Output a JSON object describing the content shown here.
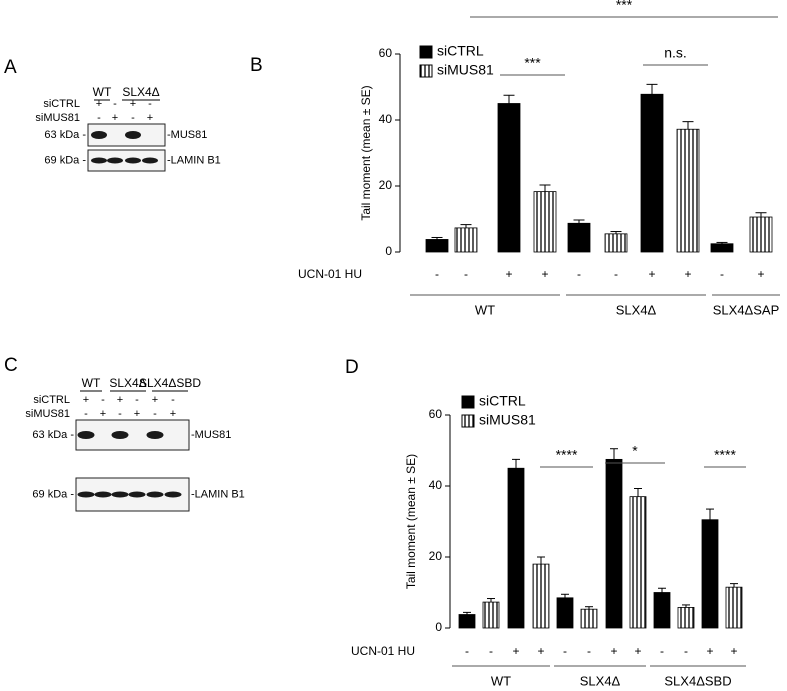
{
  "panel_labels": [
    "A",
    "B",
    "C",
    "D"
  ],
  "blots": [
    {
      "groups": [
        "WT",
        "SLX4Δ"
      ],
      "rows": [
        {
          "name": "siCTRL",
          "signs": [
            "+",
            "-",
            "+",
            "-"
          ]
        },
        {
          "name": "siMUS81",
          "signs": [
            "-",
            "+",
            "-",
            "+"
          ]
        }
      ],
      "bands": [
        {
          "size": "63 kDa -",
          "protein": "-MUS81"
        },
        {
          "size": "69 kDa -",
          "protein": "-LAMIN B1"
        }
      ]
    },
    {
      "groups": [
        "WT",
        "SLX4Δ",
        "SLX4ΔSBD"
      ],
      "rows": [
        {
          "name": "siCTRL",
          "signs": [
            "+",
            "-",
            "+",
            "-",
            "+",
            "-"
          ]
        },
        {
          "name": "siMUS81",
          "signs": [
            "-",
            "+",
            "-",
            "+",
            "-",
            "+"
          ]
        }
      ],
      "bands": [
        {
          "size": "63 kDa -",
          "protein": "-MUS81"
        },
        {
          "size": "69 kDa -",
          "protein": "-LAMIN B1"
        }
      ]
    }
  ],
  "chart_data": [
    {
      "type": "bar",
      "ylabel": "Tail moment (mean ± SE)",
      "row_label": "UCN-01 HU",
      "categories": [
        "-",
        "-",
        "+",
        "+",
        "-",
        "-",
        "+",
        "+",
        "-",
        "+"
      ],
      "groups": [
        "WT",
        "SLX4Δ",
        "SLX4ΔSAP"
      ],
      "ylim": [
        0,
        60
      ],
      "yticks": [
        0,
        20,
        40,
        60
      ],
      "series": [
        {
          "name": "siCTRL",
          "color": "#000000",
          "values": [
            3.8,
            null,
            45,
            null,
            8.7,
            null,
            47.8,
            null,
            2.5,
            null
          ],
          "errors": [
            0.6,
            null,
            2.5,
            null,
            1,
            null,
            3,
            null,
            0.4,
            null
          ]
        },
        {
          "name": "siMUS81",
          "color": "#000000",
          "pattern": "vertical-stripes",
          "values": [
            null,
            7.3,
            null,
            18.3,
            null,
            5.5,
            null,
            37.2,
            null,
            10.6
          ],
          "errors": [
            null,
            1,
            null,
            2,
            null,
            0.7,
            null,
            2.3,
            null,
            1.3
          ]
        }
      ],
      "annotations": [
        "***",
        "n.s.",
        "***"
      ]
    },
    {
      "type": "bar",
      "ylabel": "Tail moment (mean ± SE)",
      "row_label": "UCN-01 HU",
      "categories": [
        "-",
        "-",
        "+",
        "+",
        "-",
        "-",
        "+",
        "+",
        "-",
        "-",
        "+",
        "+"
      ],
      "groups": [
        "WT",
        "SLX4Δ",
        "SLX4ΔSBD"
      ],
      "ylim": [
        0,
        60
      ],
      "yticks": [
        0,
        20,
        40,
        60
      ],
      "series": [
        {
          "name": "siCTRL",
          "color": "#000000",
          "values": [
            3.8,
            null,
            45,
            null,
            8.5,
            null,
            47.5,
            null,
            10,
            null,
            30.5,
            null
          ],
          "errors": [
            0.6,
            null,
            2.5,
            null,
            1,
            null,
            3,
            null,
            1.2,
            null,
            3,
            null
          ]
        },
        {
          "name": "siMUS81",
          "color": "#000000",
          "pattern": "vertical-stripes",
          "values": [
            null,
            7.3,
            null,
            18,
            null,
            5.3,
            null,
            37,
            null,
            5.8,
            null,
            11.5
          ],
          "errors": [
            null,
            1,
            null,
            2,
            null,
            0.7,
            null,
            2.3,
            null,
            0.7,
            null,
            1
          ]
        }
      ],
      "annotations": [
        "****",
        "*",
        "****"
      ]
    }
  ]
}
